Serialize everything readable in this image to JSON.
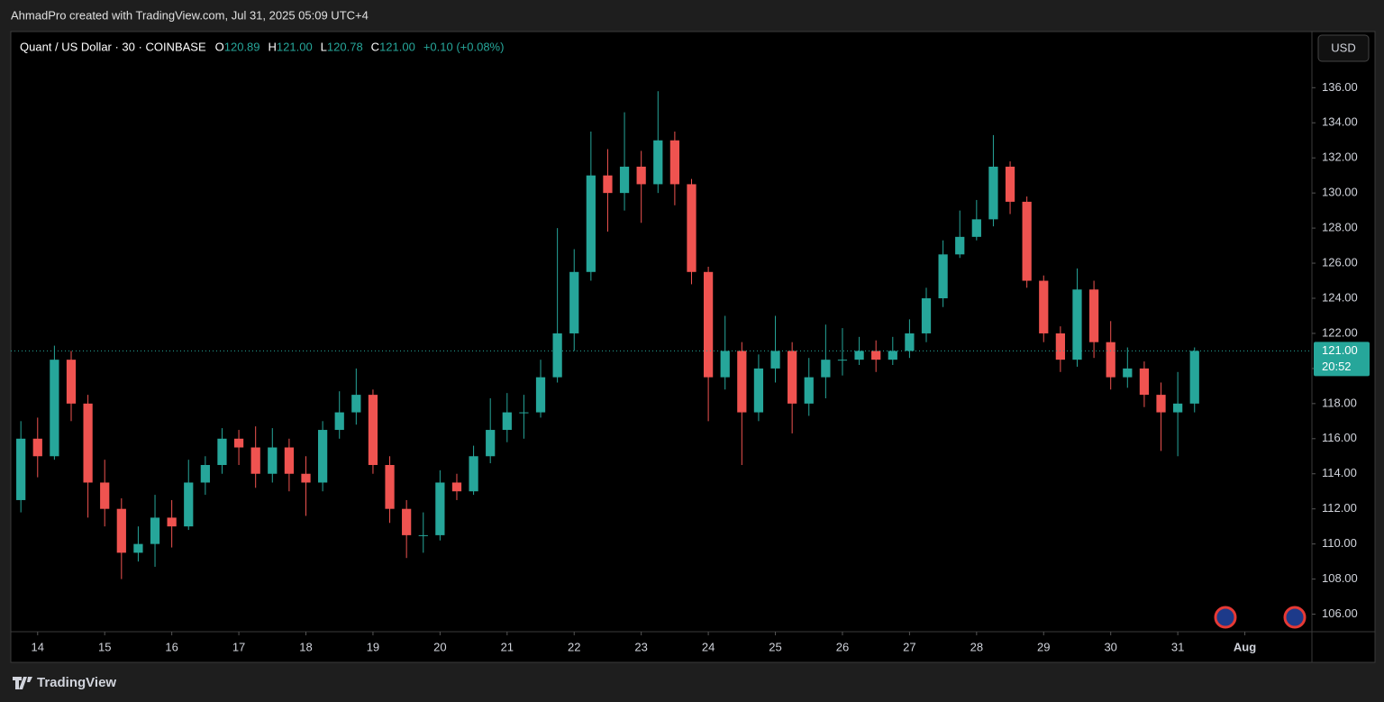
{
  "header": {
    "attribution": "AhmadPro created with TradingView.com, Jul 31, 2025 05:09 UTC+4",
    "symbol": "Quant / US Dollar · 30 · COINBASE",
    "legend": [
      {
        "key": "O",
        "value": "120.89"
      },
      {
        "key": "H",
        "value": "121.00"
      },
      {
        "key": "L",
        "value": "120.78"
      },
      {
        "key": "C",
        "value": "121.00"
      }
    ],
    "change": "+0.10 (+0.08%)",
    "currency": "USD"
  },
  "footer": {
    "brand": "TradingView"
  },
  "chart_data": {
    "type": "candlestick",
    "up_color": "#26a69a",
    "down_color": "#ef5350",
    "x": [
      13.75,
      14,
      14.25,
      14.5,
      14.75,
      15,
      15.25,
      15.5,
      15.75,
      16,
      16.25,
      16.5,
      16.75,
      17,
      17.25,
      17.5,
      17.75,
      18,
      18.25,
      18.5,
      18.75,
      19,
      19.25,
      19.5,
      19.75,
      20,
      20.25,
      20.5,
      20.75,
      21,
      21.25,
      21.5,
      21.75,
      22,
      22.25,
      22.5,
      22.75,
      23,
      23.25,
      23.5,
      23.75,
      24,
      24.25,
      24.5,
      24.75,
      25,
      25.25,
      25.5,
      25.75,
      26,
      26.25,
      26.5,
      26.75,
      27,
      27.25,
      27.5,
      27.75,
      28,
      28.25,
      28.5,
      28.75,
      29,
      29.25,
      29.5,
      29.75,
      30,
      30.25,
      30.5,
      30.75,
      31,
      31.25
    ],
    "open": [
      112.5,
      116,
      115,
      120.5,
      118,
      113.5,
      112,
      109.5,
      110,
      111.5,
      111,
      113.5,
      114.5,
      116,
      115.5,
      114,
      115.5,
      114,
      113.5,
      116.5,
      117.5,
      118.5,
      114.5,
      112,
      110.5,
      110.5,
      113.5,
      113,
      115,
      116.5,
      117.5,
      117.5,
      119.5,
      122,
      125.5,
      131,
      130,
      131.5,
      130.5,
      133,
      130.5,
      125.5,
      119.5,
      121,
      117.5,
      120,
      121,
      118,
      119.5,
      120.5,
      120.5,
      121,
      120.5,
      121,
      122,
      124,
      126.5,
      127.5,
      128.5,
      131.5,
      129.5,
      125,
      122,
      120.5,
      124.5,
      121.5,
      119.5,
      120,
      118.5,
      117.5,
      118
    ],
    "high": [
      117,
      117.2,
      121.3,
      121,
      118.5,
      114.8,
      112.6,
      111,
      112.8,
      112.5,
      114.8,
      115,
      116.6,
      116.5,
      116.7,
      116.6,
      116,
      115,
      117,
      118.7,
      120,
      118.8,
      115,
      112.5,
      111.8,
      114.2,
      114,
      115.6,
      118.3,
      118.6,
      118.5,
      120.5,
      128,
      126.8,
      133.5,
      132.5,
      134.6,
      132.4,
      135.8,
      133.5,
      130.8,
      125.8,
      123,
      121.5,
      120.8,
      123,
      121.5,
      120.6,
      122.5,
      122.3,
      121.8,
      121.6,
      121.8,
      122.8,
      124.6,
      127.3,
      129,
      129.6,
      133.3,
      131.8,
      129.8,
      125.3,
      122.4,
      125.7,
      125,
      122.7,
      121.2,
      120.4,
      119.2,
      119.8,
      121.2
    ],
    "low": [
      111.8,
      113.8,
      114.8,
      117,
      111.5,
      111,
      108,
      109,
      108.7,
      109.8,
      110.8,
      112.8,
      114,
      114.5,
      113.2,
      113.5,
      113,
      111.6,
      113,
      116,
      116.8,
      114,
      111.2,
      109.2,
      109.5,
      110.2,
      112.5,
      112.8,
      114.6,
      115.8,
      116,
      117.2,
      119.2,
      121,
      125,
      127.8,
      129,
      128.3,
      130,
      129.3,
      124.8,
      117,
      118.8,
      114.5,
      117,
      119.2,
      116.3,
      117.3,
      118.3,
      119.6,
      120.2,
      119.8,
      120.2,
      120.6,
      121.5,
      123.5,
      126.3,
      127.3,
      128.1,
      128.8,
      124.6,
      121.5,
      119.8,
      120.1,
      120.6,
      118.8,
      118.9,
      117.8,
      115.3,
      115,
      117.5
    ],
    "close": [
      116,
      115,
      120.5,
      118,
      113.5,
      112,
      109.5,
      110,
      111.5,
      111,
      113.5,
      114.5,
      116,
      115.5,
      114,
      115.5,
      114,
      113.5,
      116.5,
      117.5,
      118.5,
      114.5,
      112,
      110.5,
      110.5,
      113.5,
      113,
      115,
      116.5,
      117.5,
      117.5,
      119.5,
      122,
      125.5,
      131,
      130,
      131.5,
      130.5,
      133,
      130.5,
      125.5,
      119.5,
      121,
      117.5,
      120,
      121,
      118,
      119.5,
      120.5,
      120.5,
      121,
      120.5,
      121,
      122,
      124,
      126.5,
      127.5,
      128.5,
      131.5,
      129.5,
      125,
      122,
      120.5,
      124.5,
      121.5,
      119.5,
      120,
      118.5,
      117.5,
      118,
      121
    ],
    "xlim": [
      13.6,
      33
    ],
    "xticks": [
      14,
      15,
      16,
      17,
      18,
      19,
      20,
      21,
      22,
      23,
      24,
      25,
      26,
      27,
      28,
      29,
      30,
      31,
      {
        "value": 32,
        "label": "Aug"
      }
    ],
    "ylim": [
      105,
      139.2
    ],
    "yticks": [
      {
        "value": 106,
        "label": "106.00"
      },
      {
        "value": 108,
        "label": "108.00"
      },
      {
        "value": 110,
        "label": "110.00"
      },
      {
        "value": 112,
        "label": "112.00"
      },
      {
        "value": 114,
        "label": "114.00"
      },
      {
        "value": 116,
        "label": "116.00"
      },
      {
        "value": 118,
        "label": "118.00"
      },
      {
        "value": 120,
        "label": "120.00"
      },
      {
        "value": 122,
        "label": "122.00"
      },
      {
        "value": 124,
        "label": "124.00"
      },
      {
        "value": 126,
        "label": "126.00"
      },
      {
        "value": 128,
        "label": "128.00"
      },
      {
        "value": 130,
        "label": "130.00"
      },
      {
        "value": 132,
        "label": "132.00"
      },
      {
        "value": 134,
        "label": "134.00"
      },
      {
        "value": 136,
        "label": "136.00"
      }
    ],
    "last_price": {
      "value": 121,
      "label": "121.00"
    },
    "countdown": "20:52"
  }
}
